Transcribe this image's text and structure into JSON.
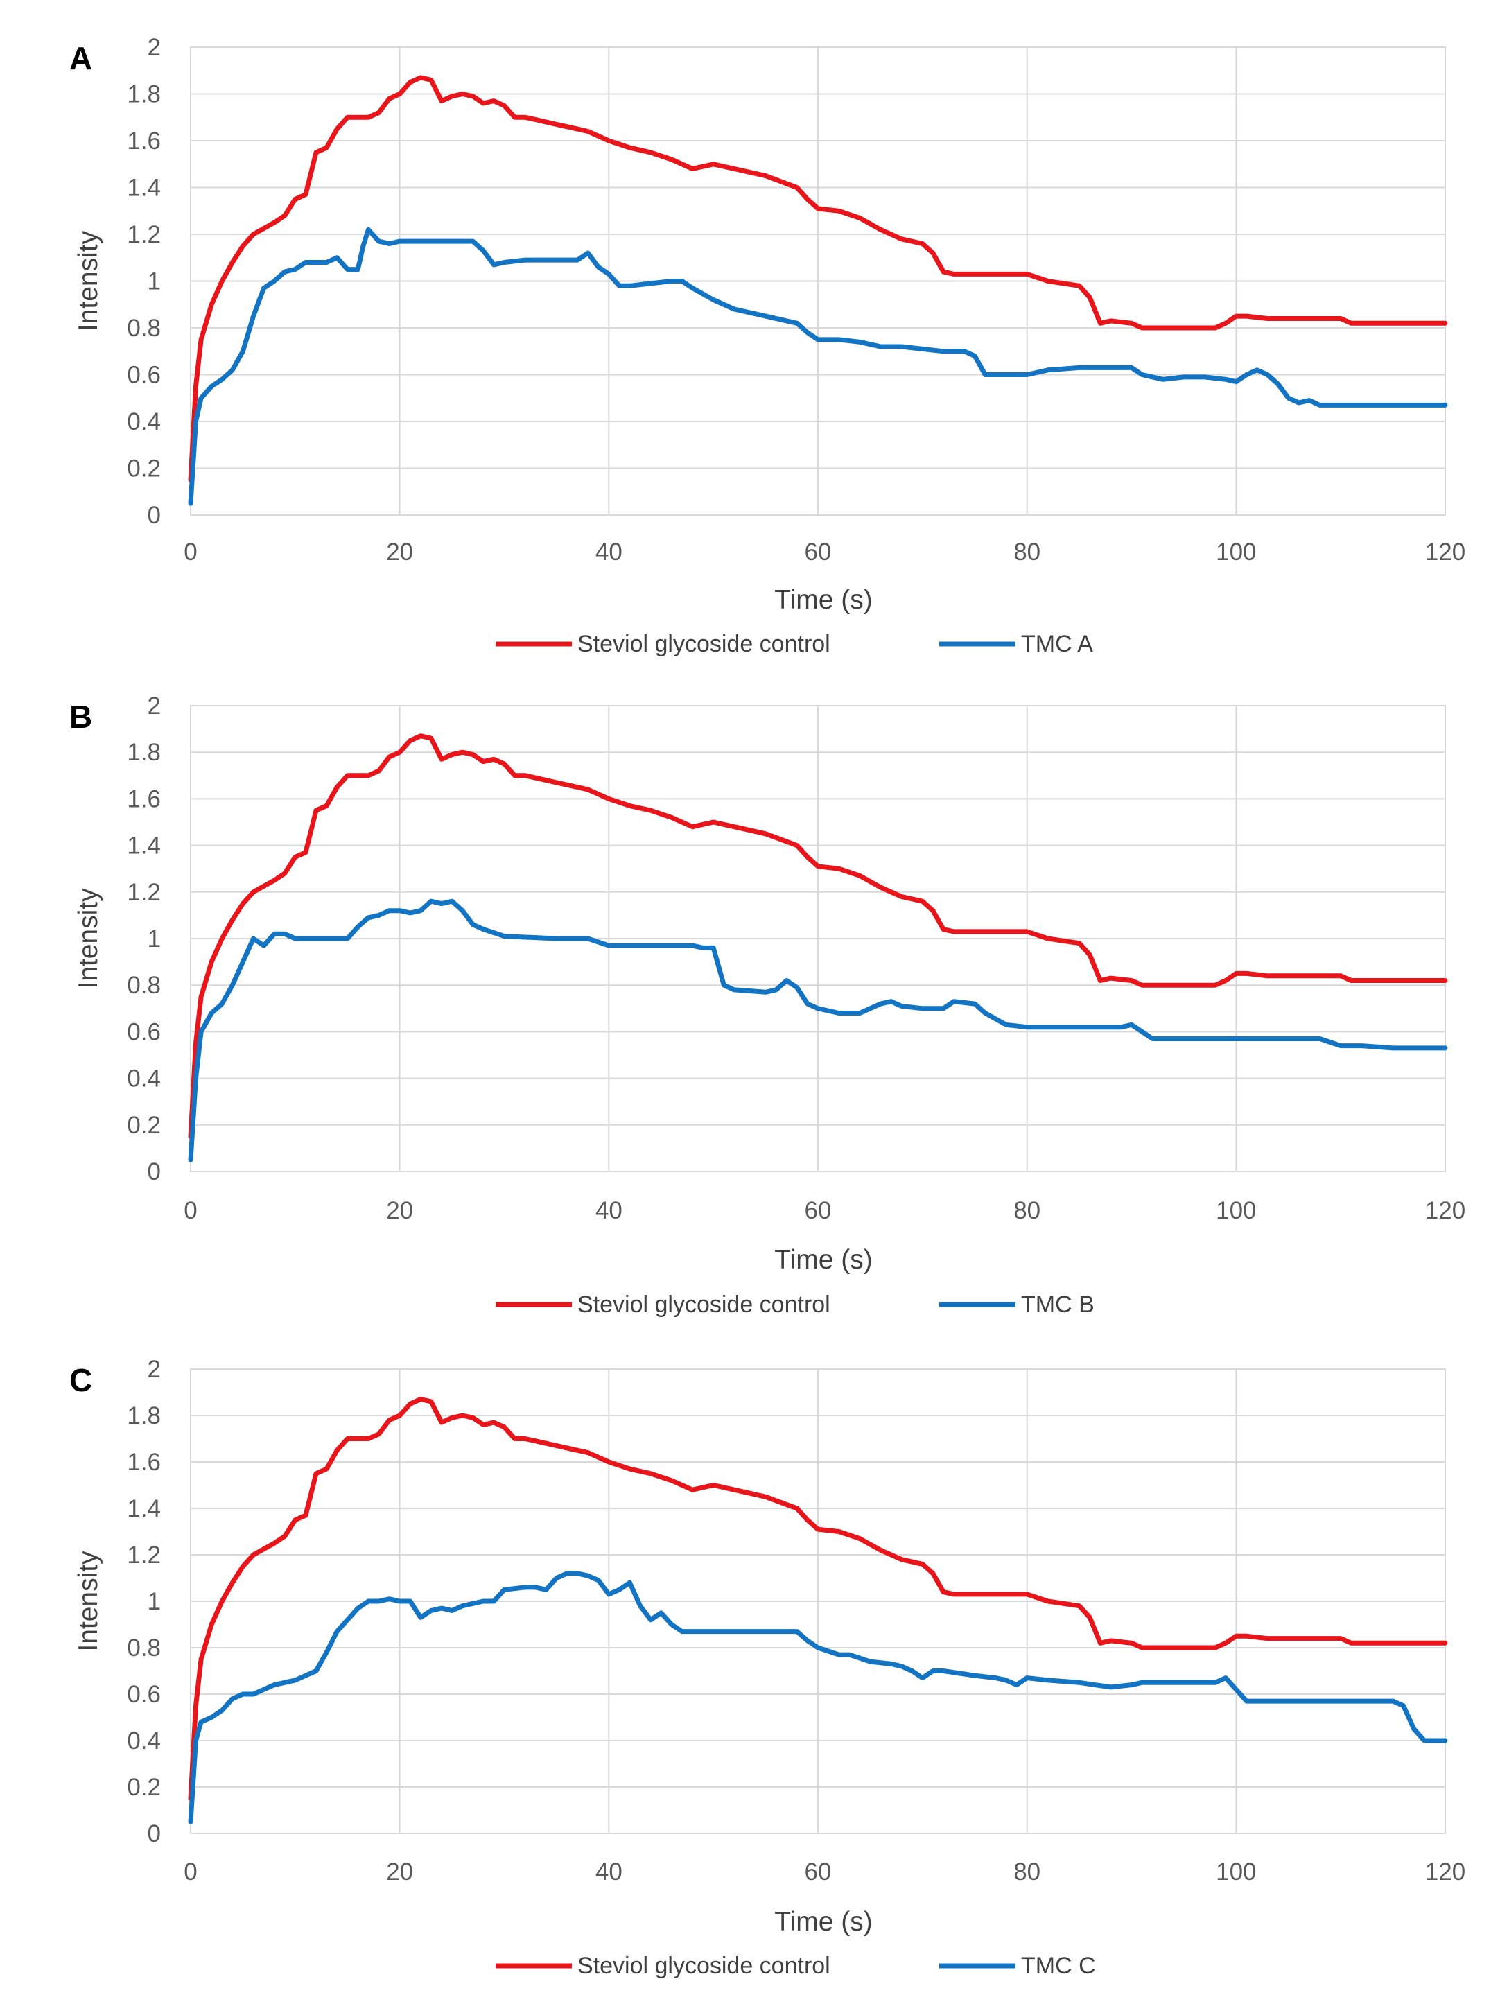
{
  "figure_title": "",
  "chart_data": [
    {
      "panel": "A",
      "type": "line",
      "title": "",
      "xlabel": "Time (s)",
      "ylabel": "Intensity",
      "xlim": [
        0,
        120
      ],
      "ylim": [
        0,
        2
      ],
      "xticks": [
        0,
        20,
        40,
        60,
        80,
        100,
        120
      ],
      "yticks": [
        "0",
        "0.2",
        "0.4",
        "0.6",
        "0.8",
        "1",
        "1.2",
        "1.4",
        "1.6",
        "1.8",
        "2"
      ],
      "grid": true,
      "legend_position": "bottom",
      "series": [
        {
          "name": "Steviol glycoside control",
          "color": "#e8151b",
          "x": [
            0,
            0.5,
            1,
            2,
            3,
            4,
            5,
            6,
            8,
            9,
            10,
            11,
            12,
            13,
            14,
            15,
            16,
            17,
            18,
            19,
            20,
            21,
            22,
            23,
            24,
            25,
            26,
            27,
            28,
            29,
            30,
            31,
            32,
            33,
            35,
            37,
            38,
            40,
            42,
            44,
            46,
            48,
            50,
            52,
            55,
            58,
            59,
            60,
            62,
            64,
            66,
            68,
            70,
            71,
            72,
            73,
            75,
            80,
            82,
            85,
            86,
            87,
            88,
            90,
            91,
            95,
            98,
            99,
            100,
            101,
            103,
            105,
            110,
            111,
            115,
            120
          ],
          "y": [
            0.15,
            0.55,
            0.75,
            0.9,
            1.0,
            1.08,
            1.15,
            1.2,
            1.25,
            1.28,
            1.35,
            1.37,
            1.55,
            1.57,
            1.65,
            1.7,
            1.7,
            1.7,
            1.72,
            1.78,
            1.8,
            1.85,
            1.87,
            1.86,
            1.77,
            1.79,
            1.8,
            1.79,
            1.76,
            1.77,
            1.75,
            1.7,
            1.7,
            1.69,
            1.67,
            1.65,
            1.64,
            1.6,
            1.57,
            1.55,
            1.52,
            1.48,
            1.5,
            1.48,
            1.45,
            1.4,
            1.35,
            1.31,
            1.3,
            1.27,
            1.22,
            1.18,
            1.16,
            1.12,
            1.04,
            1.03,
            1.03,
            1.03,
            1.0,
            0.98,
            0.93,
            0.82,
            0.83,
            0.82,
            0.8,
            0.8,
            0.8,
            0.82,
            0.85,
            0.85,
            0.84,
            0.84,
            0.84,
            0.82,
            0.82,
            0.82
          ]
        },
        {
          "name": "TMC A",
          "color": "#1474c4",
          "x": [
            0,
            0.5,
            1,
            2,
            3,
            4,
            5,
            6,
            7,
            8,
            9,
            10,
            11,
            12,
            13,
            14,
            15,
            16,
            16.5,
            17,
            18,
            19,
            20,
            22,
            24,
            26,
            27,
            28,
            29,
            30,
            32,
            35,
            37,
            38,
            39,
            40,
            41,
            42,
            44,
            46,
            47,
            48,
            50,
            52,
            55,
            58,
            59,
            60,
            62,
            64,
            66,
            68,
            70,
            72,
            74,
            75,
            76,
            78,
            80,
            82,
            85,
            88,
            90,
            91,
            93,
            95,
            97,
            99,
            100,
            101,
            102,
            103,
            104,
            105,
            106,
            107,
            108,
            110,
            115,
            120
          ],
          "y": [
            0.05,
            0.4,
            0.5,
            0.55,
            0.58,
            0.62,
            0.7,
            0.85,
            0.97,
            1.0,
            1.04,
            1.05,
            1.08,
            1.08,
            1.08,
            1.1,
            1.05,
            1.05,
            1.15,
            1.22,
            1.17,
            1.16,
            1.17,
            1.17,
            1.17,
            1.17,
            1.17,
            1.13,
            1.07,
            1.08,
            1.09,
            1.09,
            1.09,
            1.12,
            1.06,
            1.03,
            0.98,
            0.98,
            0.99,
            1.0,
            1.0,
            0.97,
            0.92,
            0.88,
            0.85,
            0.82,
            0.78,
            0.75,
            0.75,
            0.74,
            0.72,
            0.72,
            0.71,
            0.7,
            0.7,
            0.68,
            0.6,
            0.6,
            0.6,
            0.62,
            0.63,
            0.63,
            0.63,
            0.6,
            0.58,
            0.59,
            0.59,
            0.58,
            0.57,
            0.6,
            0.62,
            0.6,
            0.56,
            0.5,
            0.48,
            0.49,
            0.47,
            0.47,
            0.47,
            0.47
          ]
        }
      ]
    },
    {
      "panel": "B",
      "type": "line",
      "title": "",
      "xlabel": "Time (s)",
      "ylabel": "Intensity",
      "xlim": [
        0,
        120
      ],
      "ylim": [
        0,
        2
      ],
      "xticks": [
        0,
        20,
        40,
        60,
        80,
        100,
        120
      ],
      "yticks": [
        "0",
        "0.2",
        "0.4",
        "0.6",
        "0.8",
        "1",
        "1.2",
        "1.4",
        "1.6",
        "1.8",
        "2"
      ],
      "grid": true,
      "legend_position": "bottom",
      "series": [
        {
          "name": "Steviol glycoside control",
          "color": "#e8151b",
          "x": [
            0,
            0.5,
            1,
            2,
            3,
            4,
            5,
            6,
            8,
            9,
            10,
            11,
            12,
            13,
            14,
            15,
            16,
            17,
            18,
            19,
            20,
            21,
            22,
            23,
            24,
            25,
            26,
            27,
            28,
            29,
            30,
            31,
            32,
            33,
            35,
            37,
            38,
            40,
            42,
            44,
            46,
            48,
            50,
            52,
            55,
            58,
            59,
            60,
            62,
            64,
            66,
            68,
            70,
            71,
            72,
            73,
            75,
            80,
            82,
            85,
            86,
            87,
            88,
            90,
            91,
            95,
            98,
            99,
            100,
            101,
            103,
            105,
            110,
            111,
            115,
            120
          ],
          "y": [
            0.15,
            0.55,
            0.75,
            0.9,
            1.0,
            1.08,
            1.15,
            1.2,
            1.25,
            1.28,
            1.35,
            1.37,
            1.55,
            1.57,
            1.65,
            1.7,
            1.7,
            1.7,
            1.72,
            1.78,
            1.8,
            1.85,
            1.87,
            1.86,
            1.77,
            1.79,
            1.8,
            1.79,
            1.76,
            1.77,
            1.75,
            1.7,
            1.7,
            1.69,
            1.67,
            1.65,
            1.64,
            1.6,
            1.57,
            1.55,
            1.52,
            1.48,
            1.5,
            1.48,
            1.45,
            1.4,
            1.35,
            1.31,
            1.3,
            1.27,
            1.22,
            1.18,
            1.16,
            1.12,
            1.04,
            1.03,
            1.03,
            1.03,
            1.0,
            0.98,
            0.93,
            0.82,
            0.83,
            0.82,
            0.8,
            0.8,
            0.8,
            0.82,
            0.85,
            0.85,
            0.84,
            0.84,
            0.84,
            0.82,
            0.82,
            0.82
          ]
        },
        {
          "name": "TMC B",
          "color": "#1474c4",
          "x": [
            0,
            0.5,
            1,
            2,
            3,
            4,
            5,
            6,
            7,
            8,
            9,
            10,
            11,
            12,
            14,
            15,
            16,
            17,
            18,
            19,
            20,
            21,
            22,
            23,
            24,
            25,
            26,
            27,
            28,
            30,
            35,
            38,
            40,
            42,
            45,
            48,
            49,
            50,
            51,
            52,
            55,
            56,
            57,
            58,
            59,
            60,
            62,
            64,
            65,
            66,
            67,
            68,
            70,
            72,
            73,
            75,
            76,
            78,
            80,
            85,
            89,
            90,
            91,
            92,
            95,
            100,
            105,
            107,
            108,
            110,
            112,
            115,
            120
          ],
          "y": [
            0.05,
            0.4,
            0.6,
            0.68,
            0.72,
            0.8,
            0.9,
            1.0,
            0.97,
            1.02,
            1.02,
            1.0,
            1.0,
            1.0,
            1.0,
            1.0,
            1.05,
            1.09,
            1.1,
            1.12,
            1.12,
            1.11,
            1.12,
            1.16,
            1.15,
            1.16,
            1.12,
            1.06,
            1.04,
            1.01,
            1.0,
            1.0,
            0.97,
            0.97,
            0.97,
            0.97,
            0.96,
            0.96,
            0.8,
            0.78,
            0.77,
            0.78,
            0.82,
            0.79,
            0.72,
            0.7,
            0.68,
            0.68,
            0.7,
            0.72,
            0.73,
            0.71,
            0.7,
            0.7,
            0.73,
            0.72,
            0.68,
            0.63,
            0.62,
            0.62,
            0.62,
            0.63,
            0.6,
            0.57,
            0.57,
            0.57,
            0.57,
            0.57,
            0.57,
            0.54,
            0.54,
            0.53,
            0.53
          ]
        }
      ]
    },
    {
      "panel": "C",
      "type": "line",
      "title": "",
      "xlabel": "Time (s)",
      "ylabel": "Intensity",
      "xlim": [
        0,
        120
      ],
      "ylim": [
        0,
        2
      ],
      "xticks": [
        0,
        20,
        40,
        60,
        80,
        100,
        120
      ],
      "yticks": [
        "0",
        "0.2",
        "0.4",
        "0.6",
        "0.8",
        "1",
        "1.2",
        "1.4",
        "1.6",
        "1.8",
        "2"
      ],
      "grid": true,
      "legend_position": "bottom",
      "series": [
        {
          "name": "Steviol glycoside control",
          "color": "#e8151b",
          "x": [
            0,
            0.5,
            1,
            2,
            3,
            4,
            5,
            6,
            8,
            9,
            10,
            11,
            12,
            13,
            14,
            15,
            16,
            17,
            18,
            19,
            20,
            21,
            22,
            23,
            24,
            25,
            26,
            27,
            28,
            29,
            30,
            31,
            32,
            33,
            35,
            37,
            38,
            40,
            42,
            44,
            46,
            48,
            50,
            52,
            55,
            58,
            59,
            60,
            62,
            64,
            66,
            68,
            70,
            71,
            72,
            73,
            75,
            80,
            82,
            85,
            86,
            87,
            88,
            90,
            91,
            95,
            98,
            99,
            100,
            101,
            103,
            105,
            110,
            111,
            115,
            120
          ],
          "y": [
            0.15,
            0.55,
            0.75,
            0.9,
            1.0,
            1.08,
            1.15,
            1.2,
            1.25,
            1.28,
            1.35,
            1.37,
            1.55,
            1.57,
            1.65,
            1.7,
            1.7,
            1.7,
            1.72,
            1.78,
            1.8,
            1.85,
            1.87,
            1.86,
            1.77,
            1.79,
            1.8,
            1.79,
            1.76,
            1.77,
            1.75,
            1.7,
            1.7,
            1.69,
            1.67,
            1.65,
            1.64,
            1.6,
            1.57,
            1.55,
            1.52,
            1.48,
            1.5,
            1.48,
            1.45,
            1.4,
            1.35,
            1.31,
            1.3,
            1.27,
            1.22,
            1.18,
            1.16,
            1.12,
            1.04,
            1.03,
            1.03,
            1.03,
            1.0,
            0.98,
            0.93,
            0.82,
            0.83,
            0.82,
            0.8,
            0.8,
            0.8,
            0.82,
            0.85,
            0.85,
            0.84,
            0.84,
            0.84,
            0.82,
            0.82,
            0.82
          ]
        },
        {
          "name": "TMC C",
          "color": "#1474c4",
          "x": [
            0,
            0.5,
            1,
            2,
            3,
            4,
            5,
            6,
            7,
            8,
            9,
            10,
            11,
            12,
            13,
            14,
            15,
            16,
            17,
            18,
            19,
            20,
            21,
            22,
            23,
            24,
            25,
            26,
            28,
            29,
            30,
            32,
            33,
            34,
            35,
            36,
            37,
            38,
            39,
            40,
            41,
            42,
            43,
            44,
            45,
            46,
            47,
            50,
            55,
            58,
            59,
            60,
            62,
            63,
            65,
            67,
            68,
            69,
            70,
            71,
            72,
            75,
            77,
            78,
            79,
            80,
            82,
            85,
            88,
            90,
            91,
            95,
            98,
            99,
            100,
            101,
            105,
            110,
            115,
            116,
            117,
            118,
            120
          ],
          "y": [
            0.05,
            0.4,
            0.48,
            0.5,
            0.53,
            0.58,
            0.6,
            0.6,
            0.62,
            0.64,
            0.65,
            0.66,
            0.68,
            0.7,
            0.78,
            0.87,
            0.92,
            0.97,
            1.0,
            1.0,
            1.01,
            1.0,
            1.0,
            0.93,
            0.96,
            0.97,
            0.96,
            0.98,
            1.0,
            1.0,
            1.05,
            1.06,
            1.06,
            1.05,
            1.1,
            1.12,
            1.12,
            1.11,
            1.09,
            1.03,
            1.05,
            1.08,
            0.98,
            0.92,
            0.95,
            0.9,
            0.87,
            0.87,
            0.87,
            0.87,
            0.83,
            0.8,
            0.77,
            0.77,
            0.74,
            0.73,
            0.72,
            0.7,
            0.67,
            0.7,
            0.7,
            0.68,
            0.67,
            0.66,
            0.64,
            0.67,
            0.66,
            0.65,
            0.63,
            0.64,
            0.65,
            0.65,
            0.65,
            0.67,
            0.62,
            0.57,
            0.57,
            0.57,
            0.57,
            0.55,
            0.45,
            0.4,
            0.4
          ]
        }
      ]
    }
  ]
}
